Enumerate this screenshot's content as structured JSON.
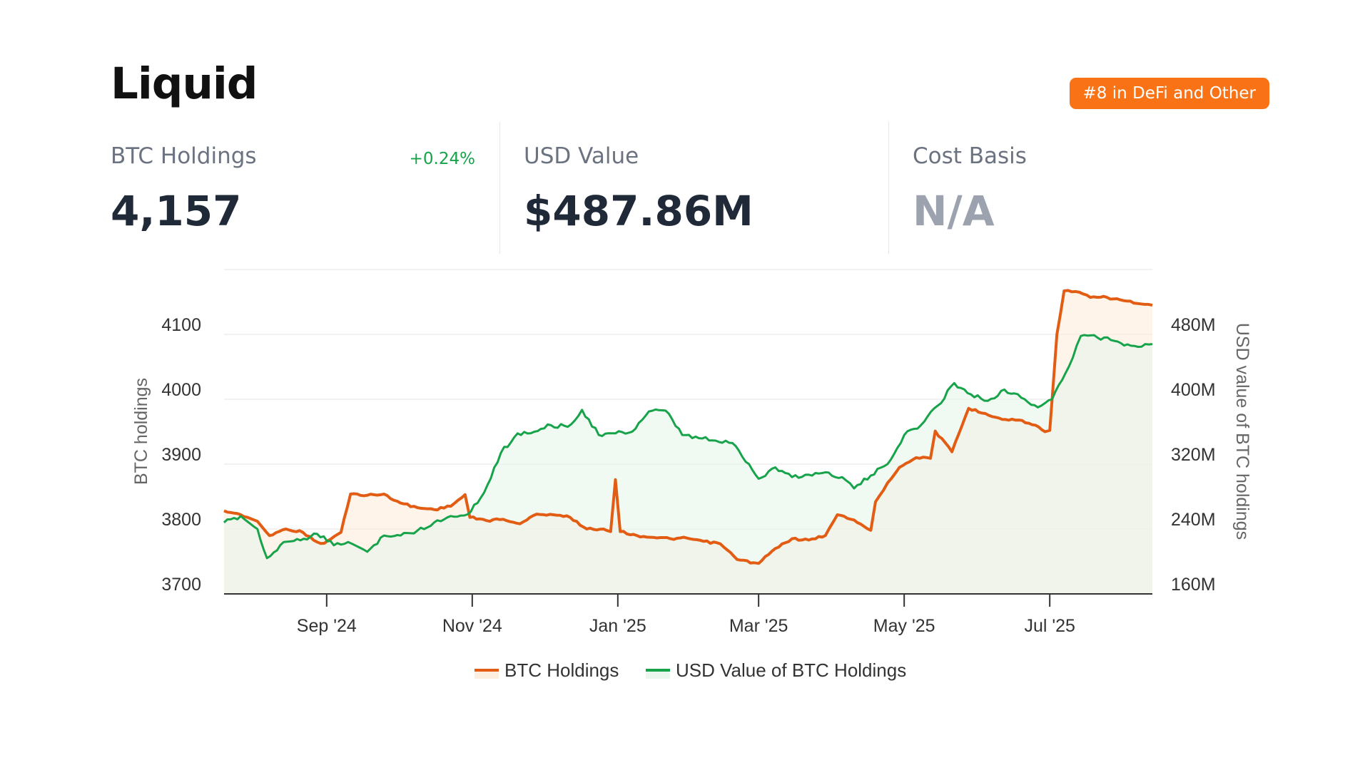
{
  "header": {
    "title": "Liquid",
    "rank_badge": "#8 in DeFi and Other"
  },
  "stats": {
    "btc_holdings": {
      "label": "BTC Holdings",
      "value": "4,157",
      "change": "+0.24%"
    },
    "usd_value": {
      "label": "USD Value",
      "value": "$487.86M"
    },
    "cost_basis": {
      "label": "Cost Basis",
      "value": "N/A"
    }
  },
  "colors": {
    "btc_line": "#e25d13",
    "usd_line": "#16a34a",
    "btc_area": "#fdebd8",
    "usd_area": "#e6f4ea",
    "badge": "#f97316",
    "change_positive": "#16a34a"
  },
  "chart_data": {
    "type": "line",
    "x_range": [
      "2024-07-20",
      "2025-08-13"
    ],
    "x_ticks": [
      {
        "date": "2024-09-01",
        "label": "Sep '24"
      },
      {
        "date": "2024-11-01",
        "label": "Nov '24"
      },
      {
        "date": "2025-01-01",
        "label": "Jan '25"
      },
      {
        "date": "2025-03-01",
        "label": "Mar '25"
      },
      {
        "date": "2025-05-01",
        "label": "May '25"
      },
      {
        "date": "2025-07-01",
        "label": "Jul '25"
      }
    ],
    "y_left": {
      "label": "BTC holdings",
      "range": [
        3700,
        4200
      ],
      "ticks": [
        3700,
        3800,
        3900,
        4000,
        4100
      ]
    },
    "y_right": {
      "label": "USD value of BTC holdings",
      "range": [
        160,
        560
      ],
      "ticks": [
        160,
        240,
        320,
        400,
        480
      ],
      "tick_labels": [
        "160M",
        "240M",
        "320M",
        "400M",
        "480M"
      ]
    },
    "grid": true,
    "legend_position": "bottom-center",
    "series": [
      {
        "name": "BTC Holdings",
        "axis": "left",
        "points": [
          [
            "2024-07-20",
            3828
          ],
          [
            "2024-07-27",
            3822
          ],
          [
            "2024-08-03",
            3812
          ],
          [
            "2024-08-08",
            3790
          ],
          [
            "2024-08-15",
            3800
          ],
          [
            "2024-08-22",
            3795
          ],
          [
            "2024-08-28",
            3780
          ],
          [
            "2024-08-31",
            3778
          ],
          [
            "2024-09-07",
            3795
          ],
          [
            "2024-09-11",
            3854
          ],
          [
            "2024-09-18",
            3852
          ],
          [
            "2024-09-25",
            3854
          ],
          [
            "2024-10-02",
            3840
          ],
          [
            "2024-10-09",
            3833
          ],
          [
            "2024-10-16",
            3830
          ],
          [
            "2024-10-23",
            3835
          ],
          [
            "2024-10-29",
            3853
          ],
          [
            "2024-10-31",
            3818
          ],
          [
            "2024-11-07",
            3813
          ],
          [
            "2024-11-14",
            3815
          ],
          [
            "2024-11-21",
            3808
          ],
          [
            "2024-11-28",
            3823
          ],
          [
            "2024-12-05",
            3822
          ],
          [
            "2024-12-12",
            3818
          ],
          [
            "2024-12-19",
            3800
          ],
          [
            "2024-12-26",
            3800
          ],
          [
            "2024-12-29",
            3796
          ],
          [
            "2024-12-31",
            3876
          ],
          [
            "2025-01-02",
            3796
          ],
          [
            "2025-01-09",
            3790
          ],
          [
            "2025-01-16",
            3787
          ],
          [
            "2025-01-23",
            3785
          ],
          [
            "2025-01-30",
            3786
          ],
          [
            "2025-02-06",
            3781
          ],
          [
            "2025-02-13",
            3777
          ],
          [
            "2025-02-20",
            3753
          ],
          [
            "2025-02-27",
            3748
          ],
          [
            "2025-03-01",
            3747
          ],
          [
            "2025-03-08",
            3770
          ],
          [
            "2025-03-15",
            3785
          ],
          [
            "2025-03-22",
            3783
          ],
          [
            "2025-03-29",
            3790
          ],
          [
            "2025-04-03",
            3822
          ],
          [
            "2025-04-10",
            3814
          ],
          [
            "2025-04-17",
            3798
          ],
          [
            "2025-04-19",
            3842
          ],
          [
            "2025-04-24",
            3871
          ],
          [
            "2025-04-29",
            3895
          ],
          [
            "2025-05-06",
            3910
          ],
          [
            "2025-05-12",
            3909
          ],
          [
            "2025-05-14",
            3951
          ],
          [
            "2025-05-21",
            3919
          ],
          [
            "2025-05-28",
            3986
          ],
          [
            "2025-06-04",
            3978
          ],
          [
            "2025-06-11",
            3969
          ],
          [
            "2025-06-18",
            3968
          ],
          [
            "2025-06-25",
            3960
          ],
          [
            "2025-06-29",
            3950
          ],
          [
            "2025-07-01",
            3952
          ],
          [
            "2025-07-04",
            4100
          ],
          [
            "2025-07-07",
            4167
          ],
          [
            "2025-07-12",
            4166
          ],
          [
            "2025-07-18",
            4157
          ],
          [
            "2025-07-25",
            4157
          ],
          [
            "2025-08-01",
            4152
          ],
          [
            "2025-08-08",
            4147
          ],
          [
            "2025-08-13",
            4145
          ]
        ]
      },
      {
        "name": "USD Value of BTC Holdings",
        "axis": "right",
        "points": [
          [
            "2024-07-20",
            248
          ],
          [
            "2024-07-27",
            256
          ],
          [
            "2024-08-03",
            240
          ],
          [
            "2024-08-07",
            204
          ],
          [
            "2024-08-14",
            224
          ],
          [
            "2024-08-21",
            226
          ],
          [
            "2024-08-28",
            234
          ],
          [
            "2024-09-04",
            220
          ],
          [
            "2024-09-10",
            224
          ],
          [
            "2024-09-18",
            212
          ],
          [
            "2024-09-25",
            232
          ],
          [
            "2024-10-02",
            232
          ],
          [
            "2024-10-09",
            238
          ],
          [
            "2024-10-16",
            248
          ],
          [
            "2024-10-23",
            256
          ],
          [
            "2024-10-30",
            258
          ],
          [
            "2024-11-06",
            285
          ],
          [
            "2024-11-13",
            334
          ],
          [
            "2024-11-20",
            358
          ],
          [
            "2024-11-27",
            360
          ],
          [
            "2024-12-04",
            368
          ],
          [
            "2024-12-11",
            366
          ],
          [
            "2024-12-17",
            387
          ],
          [
            "2024-12-24",
            356
          ],
          [
            "2024-12-31",
            358
          ],
          [
            "2025-01-07",
            360
          ],
          [
            "2025-01-14",
            385
          ],
          [
            "2025-01-21",
            386
          ],
          [
            "2025-01-28",
            356
          ],
          [
            "2025-02-04",
            352
          ],
          [
            "2025-02-11",
            349
          ],
          [
            "2025-02-18",
            346
          ],
          [
            "2025-02-25",
            320
          ],
          [
            "2025-03-01",
            302
          ],
          [
            "2025-03-08",
            316
          ],
          [
            "2025-03-15",
            304
          ],
          [
            "2025-03-22",
            307
          ],
          [
            "2025-03-29",
            310
          ],
          [
            "2025-04-05",
            304
          ],
          [
            "2025-04-10",
            290
          ],
          [
            "2025-04-17",
            306
          ],
          [
            "2025-04-24",
            320
          ],
          [
            "2025-05-01",
            356
          ],
          [
            "2025-05-08",
            368
          ],
          [
            "2025-05-15",
            392
          ],
          [
            "2025-05-22",
            420
          ],
          [
            "2025-05-29",
            406
          ],
          [
            "2025-06-05",
            398
          ],
          [
            "2025-06-12",
            412
          ],
          [
            "2025-06-19",
            402
          ],
          [
            "2025-06-26",
            390
          ],
          [
            "2025-07-02",
            400
          ],
          [
            "2025-07-09",
            440
          ],
          [
            "2025-07-14",
            478
          ],
          [
            "2025-07-21",
            476
          ],
          [
            "2025-07-28",
            472
          ],
          [
            "2025-08-04",
            466
          ],
          [
            "2025-08-10",
            468
          ],
          [
            "2025-08-13",
            468
          ]
        ]
      }
    ]
  }
}
